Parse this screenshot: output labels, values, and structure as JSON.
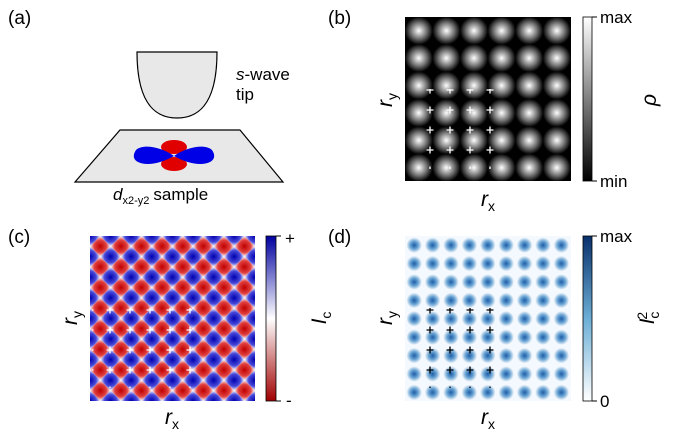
{
  "panels": [
    {
      "label": "(a)",
      "tip": {
        "italic": "s",
        "rest": "-wave",
        "line2": "tip"
      },
      "sample": {
        "symbol": "d",
        "subscript": "x2-y2",
        "rest": "sample"
      }
    },
    {
      "label": "(b)",
      "x_axis": {
        "symbol": "r",
        "subscript": "x"
      },
      "y_axis": {
        "symbol": "r",
        "subscript": "y"
      },
      "colorbar": {
        "top": "max",
        "bottom": "min",
        "label": "ρ"
      }
    },
    {
      "label": "(c)",
      "x_axis": {
        "symbol": "r",
        "subscript": "x"
      },
      "y_axis": {
        "symbol": "r",
        "subscript": "y"
      },
      "colorbar": {
        "top": "+",
        "bottom": "-",
        "symbol": "I",
        "subscript": "c"
      }
    },
    {
      "label": "(d)",
      "x_axis": {
        "symbol": "r",
        "subscript": "x"
      },
      "y_axis": {
        "symbol": "r",
        "subscript": "y"
      },
      "colorbar": {
        "top": "max",
        "bottom": "0",
        "symbol": "I",
        "subscript": "c",
        "superscript": "2"
      }
    }
  ]
}
